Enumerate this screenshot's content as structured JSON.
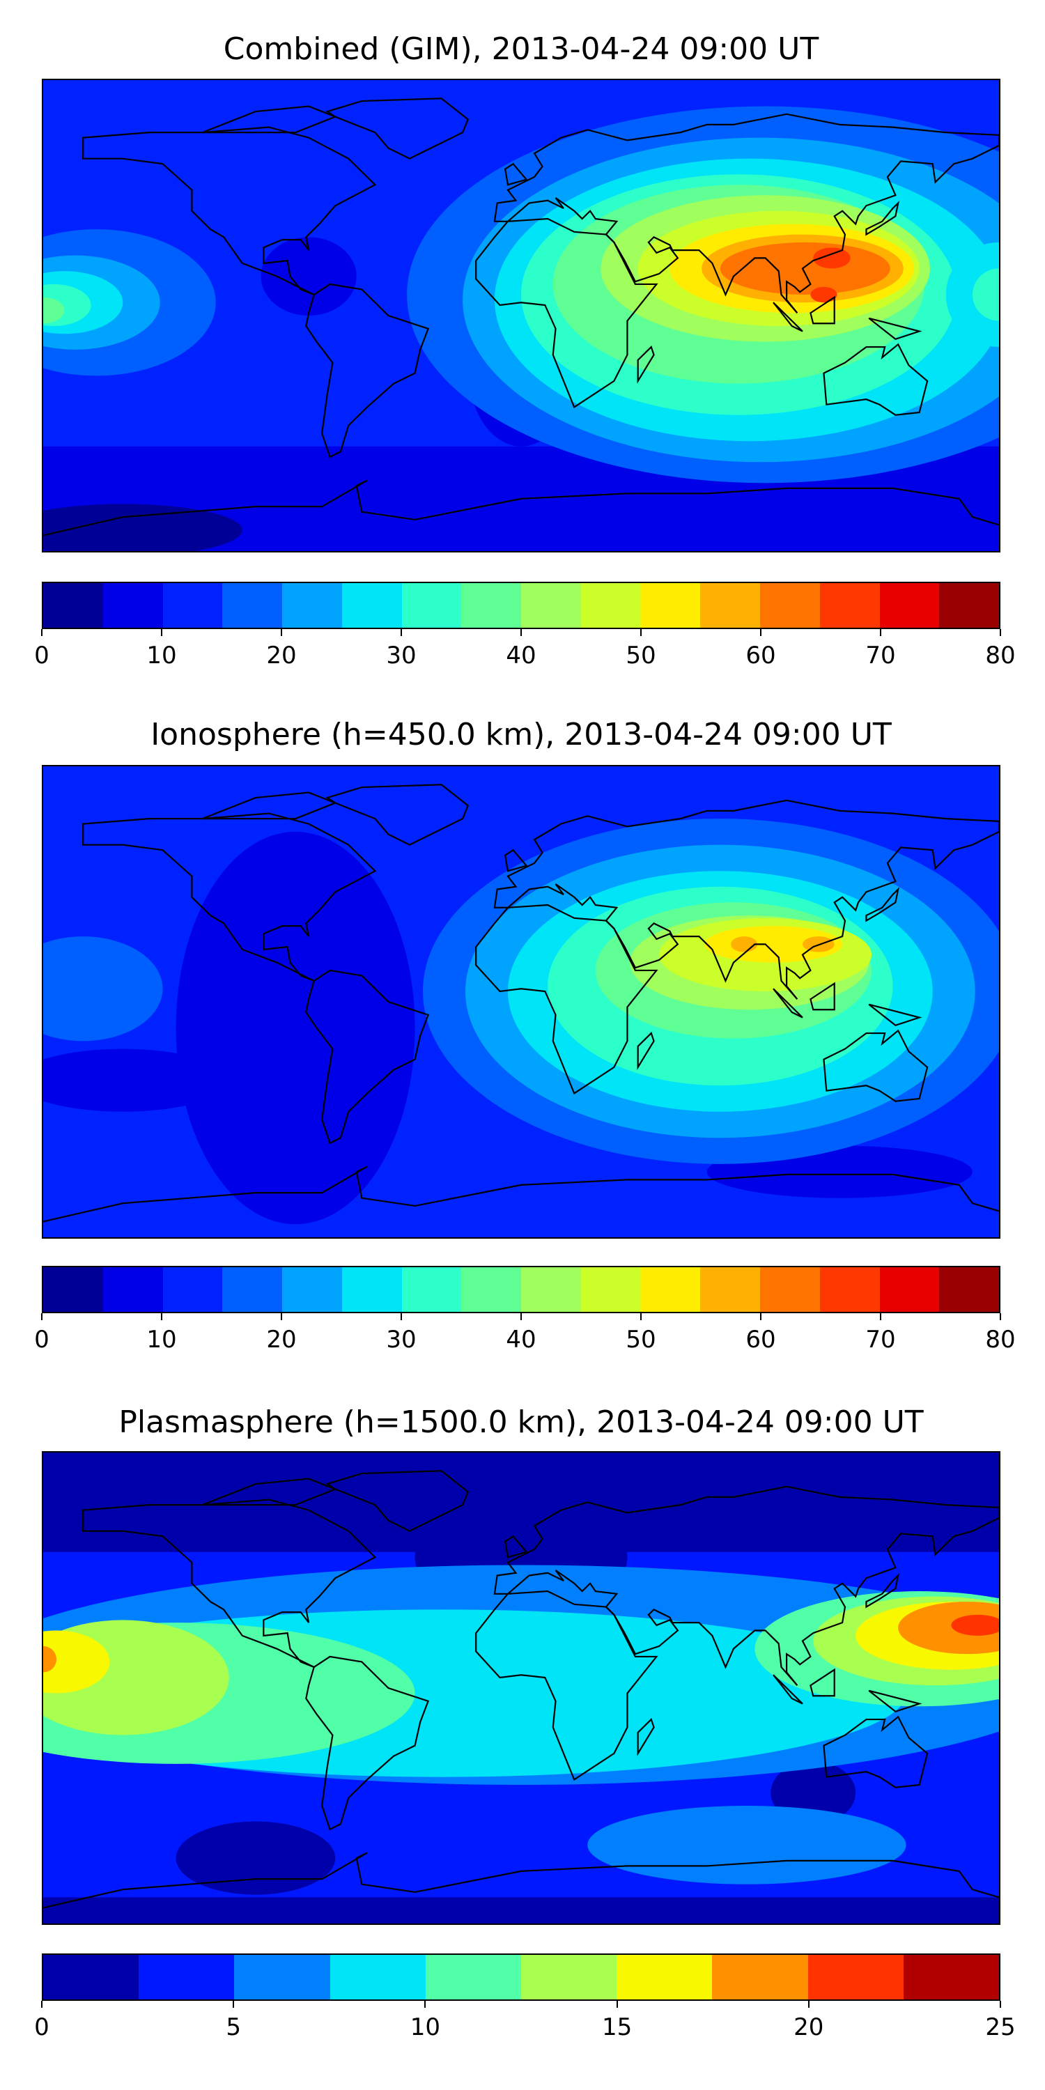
{
  "chart_data": [
    {
      "type": "heatmap",
      "title": "Combined (GIM), 2013-04-24 09:00 UT",
      "projection": "global equirectangular map with coastlines",
      "colorbar": {
        "min": 0,
        "max": 80,
        "step": 5,
        "ticks": [
          "0",
          "10",
          "20",
          "30",
          "40",
          "50",
          "60",
          "70",
          "80"
        ],
        "colors": [
          "#000096",
          "#0000e8",
          "#0022ff",
          "#0060ff",
          "#00a4ff",
          "#00e4f8",
          "#2cffca",
          "#60ff96",
          "#a0ff5c",
          "#ccff2a",
          "#ffec00",
          "#ffb000",
          "#ff7400",
          "#ff3800",
          "#e80000",
          "#9a0000"
        ]
      },
      "peak_region": "South/Southeast Asia, 60-70",
      "range_shown": [
        0,
        70
      ]
    },
    {
      "type": "heatmap",
      "title": "Ionosphere  (h=450.0 km), 2013-04-24 09:00 UT",
      "projection": "global equirectangular map with coastlines",
      "colorbar": {
        "min": 0,
        "max": 80,
        "step": 5,
        "ticks": [
          "0",
          "10",
          "20",
          "30",
          "40",
          "50",
          "60",
          "70",
          "80"
        ],
        "colors": [
          "#000096",
          "#0000e8",
          "#0022ff",
          "#0060ff",
          "#00a4ff",
          "#00e4f8",
          "#2cffca",
          "#60ff96",
          "#a0ff5c",
          "#ccff2a",
          "#ffec00",
          "#ffb000",
          "#ff7400",
          "#ff3800",
          "#e80000",
          "#9a0000"
        ]
      },
      "peak_region": "Arabia/India/SE Asia, 50-60",
      "range_shown": [
        5,
        60
      ]
    },
    {
      "type": "heatmap",
      "title": "Plasmasphere (h=1500.0 km), 2013-04-24 09:00 UT",
      "projection": "global equirectangular map with coastlines",
      "colorbar": {
        "min": 0,
        "max": 25,
        "step": 2.5,
        "ticks": [
          "0",
          "5",
          "10",
          "15",
          "20",
          "25"
        ],
        "colors": [
          "#0000aa",
          "#0018ff",
          "#0080ff",
          "#00e4f8",
          "#50ffa8",
          "#a8ff50",
          "#f8f800",
          "#ff9000",
          "#ff3400",
          "#b00000"
        ]
      },
      "peak_region": "Western Pacific near Philippines, 20-22.5",
      "range_shown": [
        0,
        22.5
      ]
    }
  ]
}
